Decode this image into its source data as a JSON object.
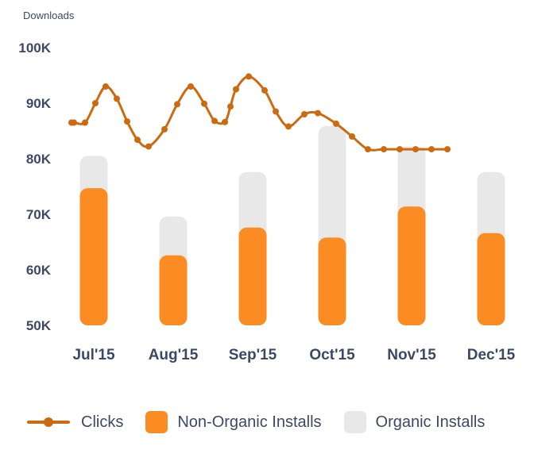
{
  "chart_data": {
    "type": "bar",
    "title": "Downloads",
    "categories": [
      "Jul'15",
      "Aug'15",
      "Sep'15",
      "Oct'15",
      "Nov'15",
      "Dec'15"
    ],
    "ylim": [
      50000,
      100000
    ],
    "y_ticks": [
      "50K",
      "60K",
      "70K",
      "80K",
      "90K",
      "100K"
    ],
    "y_tick_values": [
      50000,
      60000,
      70000,
      80000,
      90000,
      100000
    ],
    "grid": false,
    "legend_position": "bottom",
    "series": [
      {
        "name": "Non-Organic Installs",
        "kind": "bar",
        "color": "#fb8c23",
        "values": [
          74700,
          62600,
          67600,
          65800,
          71400,
          66600
        ]
      },
      {
        "name": "Organic Installs",
        "kind": "bar-stack-total",
        "color": "#e8e8e8",
        "values": [
          80500,
          69600,
          77600,
          85900,
          82200,
          77600
        ]
      },
      {
        "name": "Clicks",
        "kind": "line",
        "color": "#cc6a10",
        "x": [
          0.0,
          0.03,
          0.17,
          0.3,
          0.43,
          0.57,
          0.7,
          0.83,
          0.97,
          1.17,
          1.33,
          1.5,
          1.67,
          1.8,
          1.93,
          2.0,
          2.07,
          2.23,
          2.43,
          2.57,
          2.73,
          2.93,
          3.1,
          3.33,
          3.53,
          3.73,
          3.93,
          4.13,
          4.33,
          4.53,
          4.73
        ],
        "values": [
          86500,
          86500,
          86500,
          90000,
          93000,
          90800,
          86700,
          83400,
          82200,
          85300,
          89800,
          93000,
          89900,
          86800,
          86600,
          89400,
          92500,
          94800,
          92300,
          88500,
          85800,
          88000,
          88200,
          86300,
          84000,
          81700,
          81700,
          81700,
          81700,
          81700,
          81700
        ]
      }
    ]
  },
  "legend": {
    "clicks_label": "Clicks",
    "non_organic_label": "Non-Organic Installs",
    "organic_label": "Organic Installs",
    "clicks_color": "#cc6a10",
    "non_organic_color": "#fb8c23",
    "organic_color": "#e8e8e8"
  }
}
